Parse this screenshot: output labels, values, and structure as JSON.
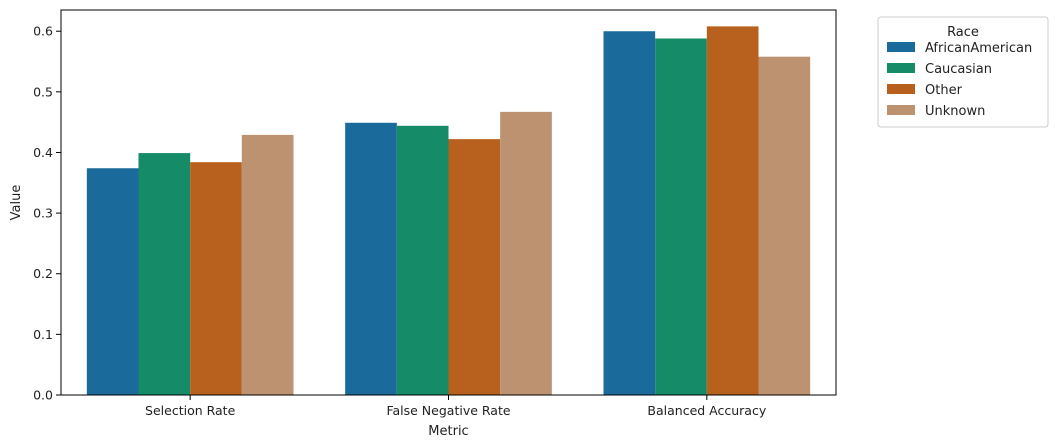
{
  "chart_data": {
    "type": "bar",
    "title": "",
    "xlabel": "Metric",
    "ylabel": "Value",
    "categories": [
      "Selection Rate",
      "False Negative Rate",
      "Balanced Accuracy"
    ],
    "ylim": [
      0,
      0.635
    ],
    "yticks": [
      0.0,
      0.1,
      0.2,
      0.3,
      0.4,
      0.5,
      0.6
    ],
    "ytick_labels": [
      "0.0",
      "0.1",
      "0.2",
      "0.3",
      "0.4",
      "0.5",
      "0.6"
    ],
    "grid": false,
    "legend": {
      "title": "Race",
      "placement": "outside-top-right"
    },
    "series": [
      {
        "name": "AfricanAmerican",
        "color": "#1a6b9b",
        "values": [
          0.374,
          0.449,
          0.6
        ]
      },
      {
        "name": "Caucasian",
        "color": "#158b68",
        "values": [
          0.399,
          0.444,
          0.588
        ]
      },
      {
        "name": "Other",
        "color": "#b8611e",
        "values": [
          0.384,
          0.422,
          0.608
        ]
      },
      {
        "name": "Unknown",
        "color": "#bc9270",
        "values": [
          0.429,
          0.467,
          0.558
        ]
      }
    ]
  }
}
